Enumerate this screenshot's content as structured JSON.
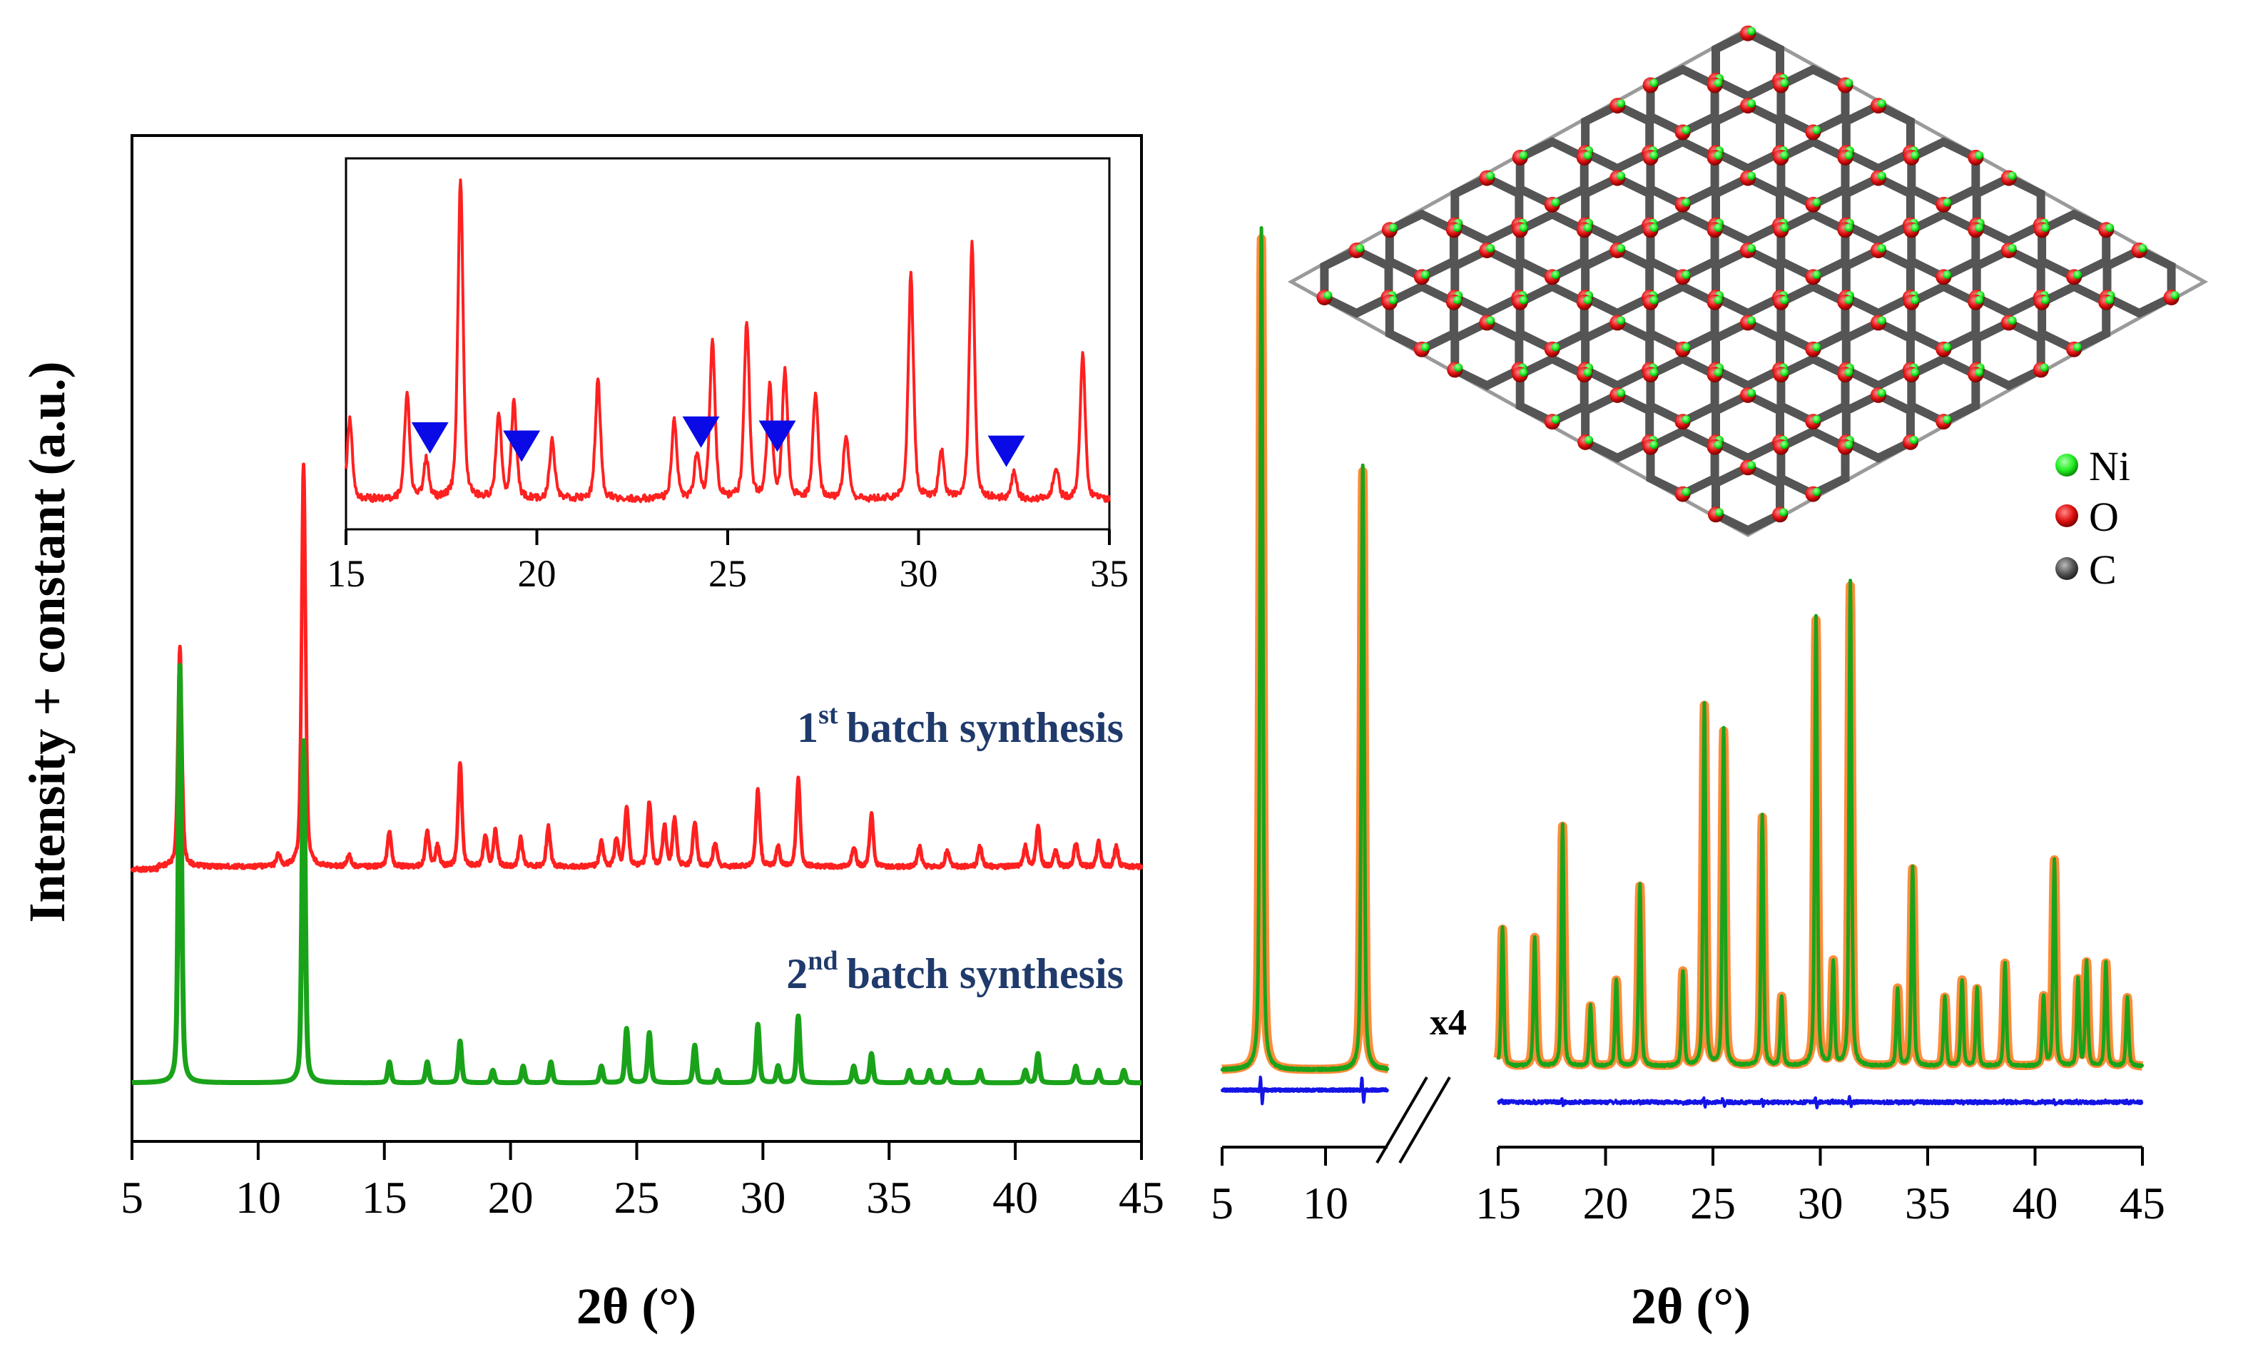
{
  "colors": {
    "red_series": "#ff2020",
    "green_series": "#1aa31a",
    "orange_calc": "#ff8c3a",
    "blue_diff": "#1414e6",
    "marker_blue": "#0a0ae6",
    "label_navy": "#1f3a6b",
    "ni": "#22ee22",
    "o": "#e01010",
    "c": "#555555"
  },
  "left_panel": {
    "ylabel": "Intensity + constant (a.u.)",
    "xlabel": "2θ (°)",
    "series_labels": [
      {
        "num": "1",
        "sup": "st",
        "text": "batch synthesis"
      },
      {
        "num": "2",
        "sup": "nd",
        "text": "batch synthesis"
      }
    ]
  },
  "right_panel": {
    "xlabel": "2θ (°)",
    "scale_label": "x4",
    "legend": [
      {
        "label": "Ni",
        "color_key": "ni"
      },
      {
        "label": "O",
        "color_key": "o"
      },
      {
        "label": "C",
        "color_key": "c"
      }
    ]
  },
  "chart_data": [
    {
      "type": "line",
      "panel": "main",
      "xlabel": "2θ (°)",
      "ylabel": "Intensity + constant (a.u.)",
      "xlim": [
        5,
        45
      ],
      "xticks": [
        5,
        10,
        15,
        20,
        25,
        30,
        35,
        40,
        45
      ],
      "grid": false,
      "peaks_note": "peak list [2θ, relative height]",
      "series": [
        {
          "name": "1st batch synthesis",
          "color": "#ff2020",
          "peaks": [
            [
              6.9,
              0.55
            ],
            [
              10.8,
              0.03
            ],
            [
              11.8,
              1.0
            ],
            [
              13.6,
              0.03
            ],
            [
              15.2,
              0.09
            ],
            [
              16.7,
              0.09
            ],
            [
              17.1,
              0.05
            ],
            [
              18.0,
              0.26
            ],
            [
              19.0,
              0.08
            ],
            [
              19.4,
              0.09
            ],
            [
              20.4,
              0.07
            ],
            [
              21.5,
              0.1
            ],
            [
              23.6,
              0.06
            ],
            [
              24.2,
              0.07
            ],
            [
              24.6,
              0.15
            ],
            [
              25.5,
              0.16
            ],
            [
              26.1,
              0.1
            ],
            [
              26.5,
              0.12
            ],
            [
              27.3,
              0.11
            ],
            [
              28.1,
              0.06
            ],
            [
              29.8,
              0.19
            ],
            [
              30.6,
              0.05
            ],
            [
              31.4,
              0.22
            ],
            [
              33.6,
              0.05
            ],
            [
              34.3,
              0.13
            ],
            [
              36.2,
              0.05
            ],
            [
              37.3,
              0.04
            ],
            [
              38.6,
              0.05
            ],
            [
              40.4,
              0.05
            ],
            [
              40.9,
              0.1
            ],
            [
              41.6,
              0.04
            ],
            [
              42.4,
              0.06
            ],
            [
              43.3,
              0.06
            ],
            [
              44.0,
              0.05
            ]
          ]
        },
        {
          "name": "2nd batch synthesis",
          "color": "#1aa31a",
          "peaks": [
            [
              6.9,
              1.0
            ],
            [
              11.8,
              0.82
            ],
            [
              15.2,
              0.05
            ],
            [
              16.7,
              0.05
            ],
            [
              18.0,
              0.1
            ],
            [
              19.3,
              0.03
            ],
            [
              20.5,
              0.04
            ],
            [
              21.6,
              0.05
            ],
            [
              23.6,
              0.04
            ],
            [
              24.6,
              0.13
            ],
            [
              25.5,
              0.12
            ],
            [
              27.3,
              0.09
            ],
            [
              28.2,
              0.03
            ],
            [
              29.8,
              0.14
            ],
            [
              30.6,
              0.04
            ],
            [
              31.4,
              0.16
            ],
            [
              33.6,
              0.04
            ],
            [
              34.3,
              0.07
            ],
            [
              35.8,
              0.03
            ],
            [
              36.6,
              0.03
            ],
            [
              37.3,
              0.03
            ],
            [
              38.6,
              0.03
            ],
            [
              40.4,
              0.03
            ],
            [
              40.9,
              0.07
            ],
            [
              42.4,
              0.04
            ],
            [
              43.3,
              0.03
            ],
            [
              44.3,
              0.03
            ]
          ]
        }
      ]
    },
    {
      "type": "line",
      "panel": "inset",
      "xlim": [
        15,
        35
      ],
      "xticks": [
        15,
        20,
        25,
        30,
        35
      ],
      "grid": false,
      "series": [
        {
          "name": "",
          "color": "#ff2020",
          "peaks": [
            [
              15.1,
              0.25
            ],
            [
              16.6,
              0.33
            ],
            [
              17.1,
              0.12
            ],
            [
              18.0,
              1.0
            ],
            [
              19.0,
              0.27
            ],
            [
              19.4,
              0.3
            ],
            [
              20.4,
              0.18
            ],
            [
              21.6,
              0.37
            ],
            [
              23.6,
              0.24
            ],
            [
              24.2,
              0.14
            ],
            [
              24.6,
              0.5
            ],
            [
              25.5,
              0.55
            ],
            [
              26.1,
              0.35
            ],
            [
              26.5,
              0.4
            ],
            [
              27.3,
              0.33
            ],
            [
              28.1,
              0.2
            ],
            [
              29.8,
              0.7
            ],
            [
              30.6,
              0.15
            ],
            [
              31.4,
              0.8
            ],
            [
              32.5,
              0.08
            ],
            [
              33.6,
              0.1
            ],
            [
              34.3,
              0.45
            ]
          ]
        }
      ],
      "markers": [
        {
          "type": "triangle-down",
          "x": [
            17.2,
            19.6,
            24.3,
            26.3,
            32.3
          ]
        }
      ]
    },
    {
      "type": "line",
      "panel": "refinement",
      "xlabel": "2θ (°)",
      "xlim": [
        5,
        45
      ],
      "xticks": [
        5,
        10,
        15,
        20,
        25,
        30,
        35,
        40,
        45
      ],
      "axis_break": [
        13,
        15
      ],
      "scale_factor_after_break": 4,
      "grid": false,
      "series": [
        {
          "name": "",
          "color": "#1aa31a",
          "peaks": [
            [
              6.9,
              1.0
            ],
            [
              11.8,
              0.72
            ],
            [
              15.2,
              0.16
            ],
            [
              16.7,
              0.15
            ],
            [
              18.0,
              0.28
            ],
            [
              19.3,
              0.07
            ],
            [
              20.5,
              0.1
            ],
            [
              21.6,
              0.21
            ],
            [
              23.6,
              0.11
            ],
            [
              24.6,
              0.42
            ],
            [
              25.5,
              0.39
            ],
            [
              27.3,
              0.29
            ],
            [
              28.2,
              0.08
            ],
            [
              29.8,
              0.52
            ],
            [
              30.6,
              0.12
            ],
            [
              31.4,
              0.56
            ],
            [
              33.6,
              0.09
            ],
            [
              34.3,
              0.23
            ],
            [
              35.8,
              0.08
            ],
            [
              36.6,
              0.1
            ],
            [
              37.3,
              0.09
            ],
            [
              38.6,
              0.12
            ],
            [
              40.4,
              0.08
            ],
            [
              40.9,
              0.24
            ],
            [
              42.0,
              0.1
            ],
            [
              42.4,
              0.12
            ],
            [
              43.3,
              0.12
            ],
            [
              44.3,
              0.08
            ]
          ]
        },
        {
          "name": "",
          "color": "#ff8c3a",
          "same_as_index": 0
        },
        {
          "name": "",
          "color": "#1414e6",
          "role": "difference"
        }
      ]
    }
  ]
}
